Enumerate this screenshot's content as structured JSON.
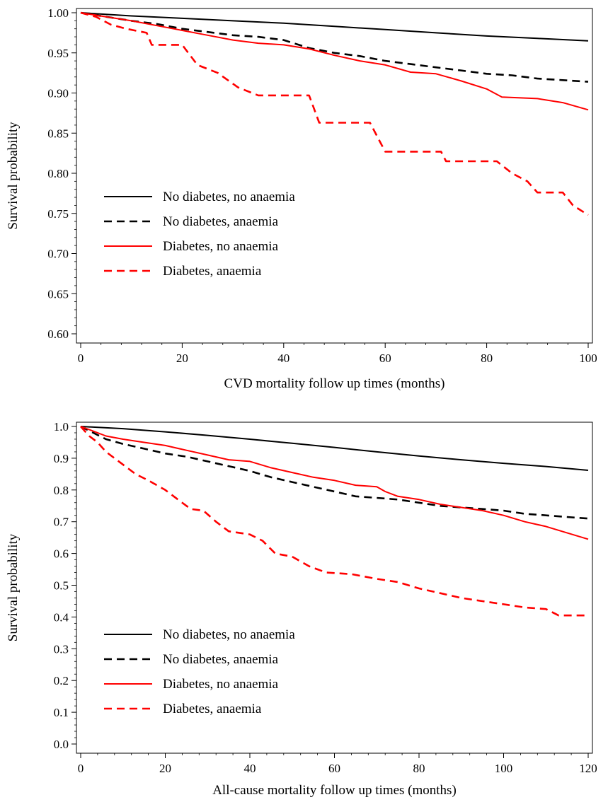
{
  "chart_data": [
    {
      "type": "line",
      "xlabel": "CVD mortality follow up times (months)",
      "ylabel": "Survival probability",
      "xlim": [
        0,
        100
      ],
      "ylim": [
        0.6,
        1.0
      ],
      "xticks": [
        0,
        20,
        40,
        60,
        80,
        100
      ],
      "xtick_labels": [
        "0",
        "20",
        "40",
        "60",
        "80",
        "100"
      ],
      "yticks": [
        0.6,
        0.65,
        0.7,
        0.75,
        0.8,
        0.85,
        0.9,
        0.95,
        1.0
      ],
      "ytick_labels": [
        "0.60",
        "0.65",
        "0.70",
        "0.75",
        "0.80",
        "0.85",
        "0.90",
        "0.95",
        "1.00"
      ],
      "legend_position": "left",
      "grid": false,
      "series": [
        {
          "name": "No diabetes, no anaemia",
          "color": "#000000",
          "dash": "solid",
          "points": [
            [
              0,
              1.0
            ],
            [
              10,
              0.996
            ],
            [
              20,
              0.993
            ],
            [
              30,
              0.99
            ],
            [
              40,
              0.987
            ],
            [
              50,
              0.983
            ],
            [
              60,
              0.979
            ],
            [
              70,
              0.975
            ],
            [
              80,
              0.971
            ],
            [
              90,
              0.968
            ],
            [
              100,
              0.965
            ]
          ]
        },
        {
          "name": "No diabetes, anaemia",
          "color": "#000000",
          "dash": "dashed",
          "points": [
            [
              0,
              1.0
            ],
            [
              5,
              0.995
            ],
            [
              10,
              0.99
            ],
            [
              15,
              0.986
            ],
            [
              20,
              0.98
            ],
            [
              25,
              0.976
            ],
            [
              30,
              0.972
            ],
            [
              35,
              0.97
            ],
            [
              40,
              0.966
            ],
            [
              43,
              0.96
            ],
            [
              45,
              0.956
            ],
            [
              50,
              0.95
            ],
            [
              55,
              0.946
            ],
            [
              60,
              0.94
            ],
            [
              65,
              0.936
            ],
            [
              70,
              0.932
            ],
            [
              75,
              0.928
            ],
            [
              80,
              0.924
            ],
            [
              85,
              0.922
            ],
            [
              90,
              0.918
            ],
            [
              95,
              0.916
            ],
            [
              100,
              0.914
            ]
          ]
        },
        {
          "name": "Diabetes, no anaemia",
          "color": "#ff0000",
          "dash": "solid",
          "points": [
            [
              0,
              1.0
            ],
            [
              5,
              0.995
            ],
            [
              10,
              0.99
            ],
            [
              15,
              0.984
            ],
            [
              20,
              0.978
            ],
            [
              25,
              0.972
            ],
            [
              30,
              0.966
            ],
            [
              35,
              0.962
            ],
            [
              40,
              0.96
            ],
            [
              45,
              0.955
            ],
            [
              50,
              0.947
            ],
            [
              55,
              0.94
            ],
            [
              60,
              0.935
            ],
            [
              65,
              0.926
            ],
            [
              70,
              0.924
            ],
            [
              75,
              0.915
            ],
            [
              80,
              0.905
            ],
            [
              83,
              0.895
            ],
            [
              90,
              0.893
            ],
            [
              95,
              0.888
            ],
            [
              100,
              0.879
            ]
          ]
        },
        {
          "name": "Diabetes, anaemia",
          "color": "#ff0000",
          "dash": "dashed",
          "points": [
            [
              0,
              1.0
            ],
            [
              3,
              0.995
            ],
            [
              6,
              0.985
            ],
            [
              9,
              0.98
            ],
            [
              13,
              0.975
            ],
            [
              14,
              0.96
            ],
            [
              20,
              0.96
            ],
            [
              23,
              0.935
            ],
            [
              27,
              0.925
            ],
            [
              31,
              0.907
            ],
            [
              35,
              0.897
            ],
            [
              45,
              0.897
            ],
            [
              47,
              0.863
            ],
            [
              57,
              0.863
            ],
            [
              60,
              0.827
            ],
            [
              71,
              0.827
            ],
            [
              72,
              0.815
            ],
            [
              82,
              0.815
            ],
            [
              85,
              0.8
            ],
            [
              88,
              0.79
            ],
            [
              90,
              0.776
            ],
            [
              95,
              0.776
            ],
            [
              97,
              0.76
            ],
            [
              100,
              0.748
            ]
          ]
        }
      ]
    },
    {
      "type": "line",
      "xlabel": "All-cause mortality follow up times (months)",
      "ylabel": "Survival probability",
      "xlim": [
        0,
        120
      ],
      "ylim": [
        0.0,
        1.0
      ],
      "xticks": [
        0,
        20,
        40,
        60,
        80,
        100,
        120
      ],
      "xtick_labels": [
        "0",
        "20",
        "40",
        "60",
        "80",
        "100",
        "120"
      ],
      "yticks": [
        0.0,
        0.1,
        0.2,
        0.3,
        0.4,
        0.5,
        0.6,
        0.7,
        0.8,
        0.9,
        1.0
      ],
      "ytick_labels": [
        "0.0",
        "0.1",
        "0.2",
        "0.3",
        "0.4",
        "0.5",
        "0.6",
        "0.7",
        "0.8",
        "0.9",
        "1.0"
      ],
      "legend_position": "lower-left",
      "grid": false,
      "series": [
        {
          "name": "No diabetes, no anaemia",
          "color": "#000000",
          "dash": "solid",
          "points": [
            [
              0,
              1.0
            ],
            [
              10,
              0.993
            ],
            [
              20,
              0.983
            ],
            [
              30,
              0.972
            ],
            [
              40,
              0.96
            ],
            [
              50,
              0.947
            ],
            [
              60,
              0.934
            ],
            [
              70,
              0.92
            ],
            [
              80,
              0.907
            ],
            [
              90,
              0.895
            ],
            [
              100,
              0.884
            ],
            [
              110,
              0.874
            ],
            [
              120,
              0.862
            ]
          ]
        },
        {
          "name": "No diabetes, anaemia",
          "color": "#000000",
          "dash": "dashed",
          "points": [
            [
              0,
              1.0
            ],
            [
              3,
              0.98
            ],
            [
              6,
              0.96
            ],
            [
              10,
              0.945
            ],
            [
              15,
              0.93
            ],
            [
              20,
              0.915
            ],
            [
              25,
              0.905
            ],
            [
              30,
              0.89
            ],
            [
              35,
              0.875
            ],
            [
              40,
              0.86
            ],
            [
              45,
              0.84
            ],
            [
              50,
              0.825
            ],
            [
              55,
              0.81
            ],
            [
              60,
              0.795
            ],
            [
              65,
              0.78
            ],
            [
              70,
              0.775
            ],
            [
              75,
              0.77
            ],
            [
              80,
              0.76
            ],
            [
              85,
              0.75
            ],
            [
              90,
              0.745
            ],
            [
              95,
              0.74
            ],
            [
              100,
              0.735
            ],
            [
              105,
              0.725
            ],
            [
              110,
              0.72
            ],
            [
              115,
              0.715
            ],
            [
              120,
              0.71
            ]
          ]
        },
        {
          "name": "Diabetes, no anaemia",
          "color": "#ff0000",
          "dash": "solid",
          "points": [
            [
              0,
              1.0
            ],
            [
              3,
              0.985
            ],
            [
              6,
              0.97
            ],
            [
              10,
              0.96
            ],
            [
              15,
              0.95
            ],
            [
              20,
              0.94
            ],
            [
              25,
              0.925
            ],
            [
              30,
              0.91
            ],
            [
              35,
              0.895
            ],
            [
              40,
              0.89
            ],
            [
              45,
              0.87
            ],
            [
              50,
              0.855
            ],
            [
              55,
              0.84
            ],
            [
              60,
              0.83
            ],
            [
              65,
              0.815
            ],
            [
              70,
              0.81
            ],
            [
              72,
              0.795
            ],
            [
              75,
              0.78
            ],
            [
              80,
              0.77
            ],
            [
              85,
              0.755
            ],
            [
              90,
              0.745
            ],
            [
              95,
              0.735
            ],
            [
              100,
              0.72
            ],
            [
              105,
              0.7
            ],
            [
              110,
              0.685
            ],
            [
              115,
              0.665
            ],
            [
              120,
              0.645
            ]
          ]
        },
        {
          "name": "Diabetes, anaemia",
          "color": "#ff0000",
          "dash": "dashed",
          "points": [
            [
              0,
              1.0
            ],
            [
              2,
              0.97
            ],
            [
              4,
              0.95
            ],
            [
              6,
              0.92
            ],
            [
              8,
              0.9
            ],
            [
              10,
              0.88
            ],
            [
              13,
              0.85
            ],
            [
              16,
              0.83
            ],
            [
              20,
              0.8
            ],
            [
              23,
              0.77
            ],
            [
              26,
              0.74
            ],
            [
              29,
              0.735
            ],
            [
              32,
              0.7
            ],
            [
              35,
              0.67
            ],
            [
              40,
              0.66
            ],
            [
              43,
              0.64
            ],
            [
              46,
              0.6
            ],
            [
              50,
              0.59
            ],
            [
              54,
              0.56
            ],
            [
              58,
              0.54
            ],
            [
              64,
              0.535
            ],
            [
              70,
              0.52
            ],
            [
              75,
              0.51
            ],
            [
              80,
              0.49
            ],
            [
              85,
              0.475
            ],
            [
              90,
              0.46
            ],
            [
              95,
              0.45
            ],
            [
              100,
              0.44
            ],
            [
              105,
              0.43
            ],
            [
              110,
              0.425
            ],
            [
              113,
              0.405
            ],
            [
              120,
              0.405
            ]
          ]
        }
      ]
    }
  ]
}
